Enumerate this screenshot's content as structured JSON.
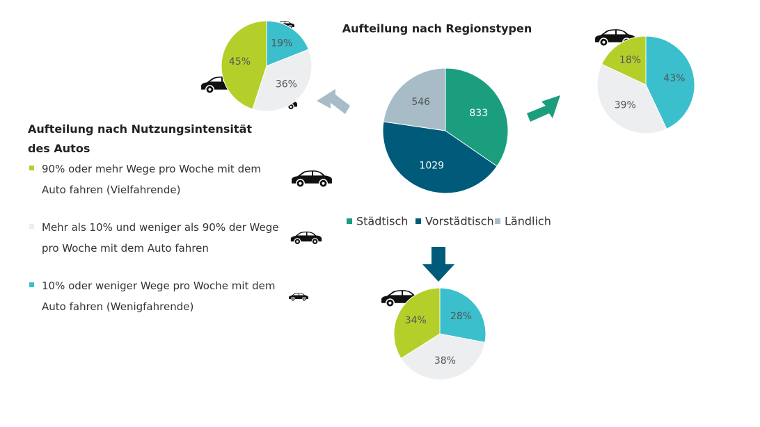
{
  "chart_data": [
    {
      "type": "pie",
      "title": "Aufteilung nach Regionstypen",
      "categories": [
        "Städtisch",
        "Vorstädtisch",
        "Ländlich"
      ],
      "values": [
        833,
        1029,
        546
      ],
      "colors": [
        "#1a9e7d",
        "#005a7a",
        "#a8bcc8"
      ]
    },
    {
      "type": "pie",
      "values": [
        19,
        36,
        45
      ],
      "value_labels": [
        "19%",
        "36%",
        "45%"
      ],
      "colors": [
        "#3bbfcc",
        "#eceef0",
        "#b5cf2a"
      ]
    },
    {
      "type": "pie",
      "values": [
        43,
        39,
        18
      ],
      "value_labels": [
        "43%",
        "39%",
        "18%"
      ],
      "colors": [
        "#3bbfcc",
        "#eceef0",
        "#b5cf2a"
      ]
    },
    {
      "type": "pie",
      "values": [
        28,
        38,
        34
      ],
      "value_labels": [
        "28%",
        "38%",
        "34%"
      ],
      "colors": [
        "#3bbfcc",
        "#eceef0",
        "#b5cf2a"
      ]
    }
  ],
  "usage_legend": {
    "title": "Aufteilung nach Nutzungsintensität des Autos",
    "items": [
      {
        "text": "90% oder mehr Wege pro Woche mit dem Auto fahren (Vielfahrende)",
        "color": "#b5cf2a"
      },
      {
        "text": "Mehr als 10% und weniger als 90% der Wege pro Woche mit dem Auto fahren",
        "color": "#eceef0"
      },
      {
        "text": "10% oder weniger Wege pro Woche mit dem Auto fahren (Wenigfahrende)",
        "color": "#3bbfcc"
      }
    ]
  }
}
